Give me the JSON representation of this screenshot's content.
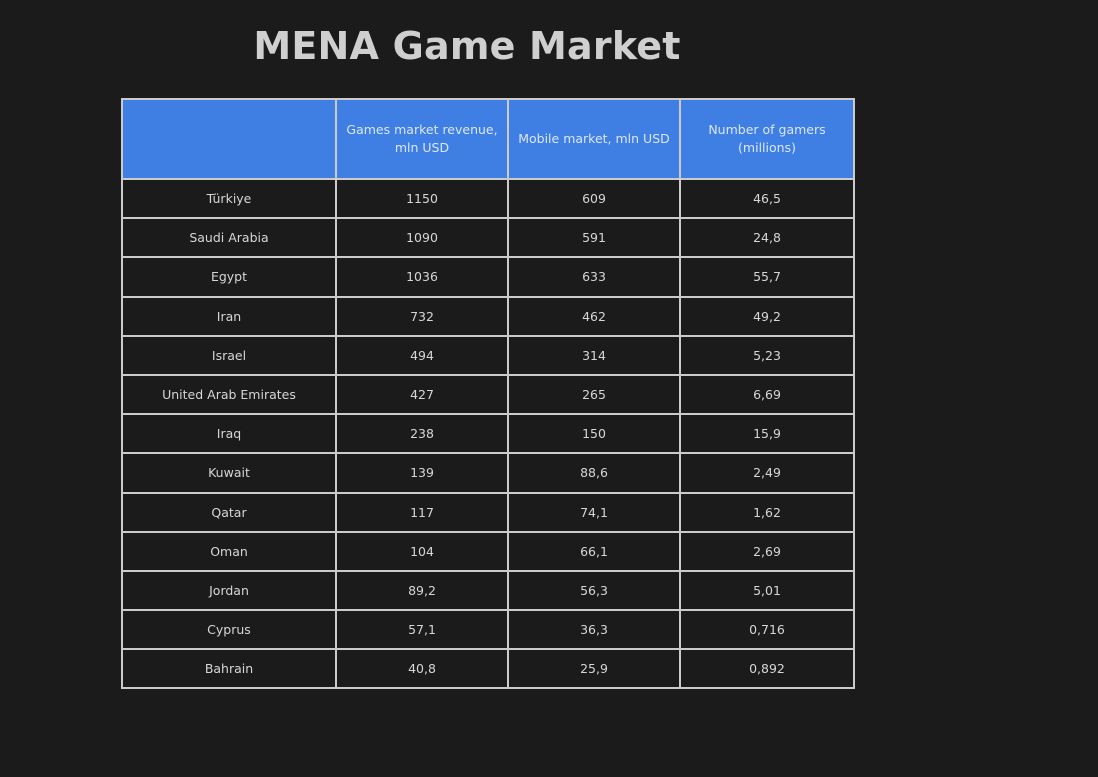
{
  "page": {
    "title": "MENA Game Market"
  },
  "table": {
    "headers": [
      "",
      "Games market revenue, mln USD",
      "Mobile market, mln USD",
      "Number of gamers (millions)"
    ],
    "rows": [
      [
        "Türkiye",
        "1150",
        "609",
        "46,5"
      ],
      [
        "Saudi Arabia",
        "1090",
        "591",
        "24,8"
      ],
      [
        "Egypt",
        "1036",
        "633",
        "55,7"
      ],
      [
        "Iran",
        "732",
        "462",
        "49,2"
      ],
      [
        "Israel",
        "494",
        "314",
        "5,23"
      ],
      [
        "United Arab Emirates",
        "427",
        "265",
        "6,69"
      ],
      [
        "Iraq",
        "238",
        "150",
        "15,9"
      ],
      [
        "Kuwait",
        "139",
        "88,6",
        "2,49"
      ],
      [
        "Qatar",
        "117",
        "74,1",
        "1,62"
      ],
      [
        "Oman",
        "104",
        "66,1",
        "2,69"
      ],
      [
        "Jordan",
        "89,2",
        "56,3",
        "5,01"
      ],
      [
        "Cyprus",
        "57,1",
        "36,3",
        "0,716"
      ],
      [
        "Bahrain",
        "40,8",
        "25,9",
        "0,892"
      ]
    ]
  },
  "colors": {
    "background": "#1b1b1b",
    "header_fill": "#3f7fe3",
    "border": "#cbcbcb",
    "text": "#d6d6d6"
  }
}
